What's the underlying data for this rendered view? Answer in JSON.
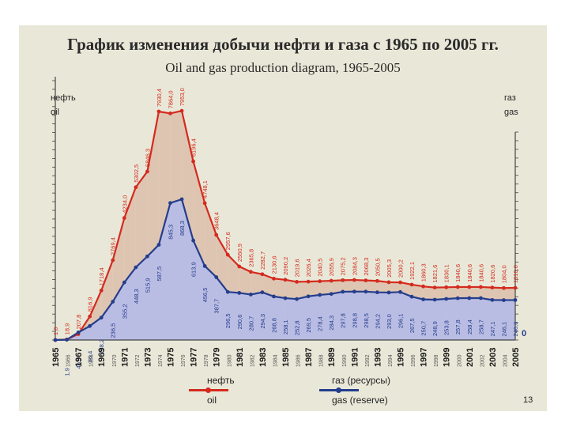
{
  "slide": {
    "title_ru": "График изменения добычи нефти и газа с 1965 по 2005 гг.",
    "title_en": "Oil and gas production diagram, 1965-2005",
    "page_number": "13"
  },
  "colors": {
    "oil": "#d42a1e",
    "gas": "#243d8c",
    "oil_fill": "#d9b9a4",
    "gas_fill": "#b7bde6"
  },
  "chart_data": {
    "type": "area",
    "title": "Oil and gas production diagram, 1965-2005",
    "left_axis_label_ru": "нефть",
    "left_axis_label_en": "oil",
    "right_axis_label_ru": "газ",
    "right_axis_label_en": "gas",
    "right_axis_zero": "0",
    "x": [
      "1965",
      "1966",
      "1967",
      "1968",
      "1969",
      "1970",
      "1971",
      "1972",
      "1973",
      "1974",
      "1975",
      "1976",
      "1977",
      "1978",
      "1979",
      "1980",
      "1981",
      "1982",
      "1983",
      "1984",
      "1985",
      "1986",
      "1987",
      "1988",
      "1989",
      "1990",
      "1991",
      "1992",
      "1993",
      "1994",
      "1995",
      "1996",
      "1997",
      "1998",
      "1999",
      "2000",
      "2001",
      "2002",
      "2003",
      "2004",
      "2005"
    ],
    "ylim": [
      0,
      9000
    ],
    "series": [
      {
        "name": "нефть",
        "name_en": "oil",
        "values": [
          1,
          18.9,
          207.8,
          816.9,
          1718.4,
          2769.4,
          4234,
          5302.5,
          5846.3,
          7930.4,
          7864,
          7953,
          6196.4,
          4748.1,
          3648.4,
          2957.6,
          2550.9,
          2365.8,
          2282.7,
          2130.6,
          2090.2,
          2019.6,
          2026.4,
          2040.5,
          2055.9,
          2075.2,
          2084.3,
          2068.3,
          2050.5,
          2005.3,
          2000.2,
          1922.1,
          1860.3,
          1821.6,
          1830.1,
          1840.6,
          1840.6,
          1840.6,
          1820.6,
          1804,
          1810
        ]
      },
      {
        "name": "газ (ресурсы)",
        "name_en": "gas (reserve)",
        "values": [
          0,
          1.9,
          46.9,
          86.4,
          138.2,
          236.5,
          355.2,
          448.3,
          515.9,
          587.5,
          845.3,
          868.3,
          613.9,
          456.5,
          387.7,
          296.5,
          290.6,
          280.7,
          294.3,
          268.8,
          258.1,
          252.8,
          269.5,
          278.4,
          284.3,
          297.8,
          298.8,
          298.5,
          294.2,
          293,
          296.1,
          267.5,
          250.7,
          248.9,
          253.8,
          257.8,
          258.4,
          258.7,
          247.1,
          246.1,
          246.6
        ]
      }
    ],
    "oil_labels": [
      "1,0",
      "18,9",
      "207,8",
      "816,9",
      "1718,4",
      "2769,4",
      "4234,0",
      "5302,5",
      "5846,3",
      "7930,4",
      "7864,0",
      "7953,0",
      "6196,4",
      "4748,1",
      "3648,4",
      "2957,6",
      "2550,9",
      "2365,8",
      "2282,7",
      "2130,6",
      "2090,2",
      "2019,6",
      "2026,4",
      "2040,5",
      "2055,9",
      "2075,2",
      "2084,3",
      "2068,3",
      "2050,5",
      "2005,3",
      "2000,2",
      "1922,1",
      "1860,3",
      "1821,6",
      "1830,1",
      "1840,6",
      "1840,6",
      "1840,6",
      "1820,6",
      "1804,0",
      "1810,0"
    ],
    "gas_labels": [
      "",
      "1,9",
      "46,9",
      "86,4",
      "138,2",
      "236,5",
      "355,2",
      "448,3",
      "515,9",
      "587,5",
      "845,3",
      "868,3",
      "613,9",
      "456,5",
      "387,7",
      "296,5",
      "290,6",
      "280,7",
      "294,3",
      "268,8",
      "258,1",
      "252,8",
      "269,5",
      "278,4",
      "284,3",
      "297,8",
      "298,8",
      "298,5",
      "294,2",
      "293,0",
      "296,1",
      "267,5",
      "250,7",
      "248,9",
      "253,8",
      "257,8",
      "258,4",
      "258,7",
      "247,1",
      "246,1",
      "246,6"
    ],
    "legend": [
      {
        "ru": "нефть",
        "en": "oil"
      },
      {
        "ru": "газ (ресурсы)",
        "en": "gas (reserve)"
      }
    ]
  }
}
